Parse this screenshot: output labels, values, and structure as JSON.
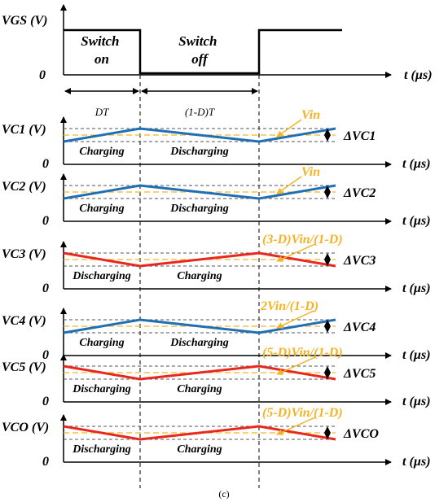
{
  "vgs": {
    "axis_label": "VGS (V)",
    "zero": "0",
    "t_label": "t (µs)",
    "switch_on": "Switch on",
    "switch_off": "Switch off"
  },
  "intervals": {
    "dt": "DT",
    "one_minus_d_t": "(1-D)T"
  },
  "panels": [
    {
      "id": "c1",
      "axis_label": "VC1 (V)",
      "zero": "0",
      "t_label": "t (µs)",
      "phase1": "Charging",
      "phase2": "Discharging",
      "direction": "up",
      "line_color": "#1f6fb5",
      "avg_label": "Vin",
      "delta_label": "ΔVC1"
    },
    {
      "id": "c2",
      "axis_label": "VC2 (V)",
      "zero": "0",
      "t_label": "t (µs)",
      "phase1": "Charging",
      "phase2": "Discharging",
      "direction": "up",
      "line_color": "#1f6fb5",
      "avg_label": "Vin",
      "delta_label": "ΔVC2"
    },
    {
      "id": "c3",
      "axis_label": "VC3 (V)",
      "zero": "0",
      "t_label": "t (µs)",
      "phase1": "Discharging",
      "phase2": "Charging",
      "direction": "down",
      "line_color": "#e8281e",
      "avg_label": "(3-D)Vin/(1-D)",
      "delta_label": "ΔVC3"
    },
    {
      "id": "c4",
      "axis_label": "VC4 (V)",
      "zero": "0",
      "t_label": "t (µs)",
      "phase1": "Charging",
      "phase2": "Discharging",
      "direction": "up",
      "line_color": "#1f6fb5",
      "avg_label": "2Vin/(1-D)",
      "delta_label": "ΔVC4"
    },
    {
      "id": "c5",
      "axis_label": "VC5 (V)",
      "zero": "0",
      "t_label": "t (µs)",
      "phase1": "Discharging",
      "phase2": "Charging",
      "direction": "down",
      "line_color": "#e8281e",
      "avg_label": "(5-D)Vin/(1-D)",
      "delta_label": "ΔVC5"
    },
    {
      "id": "co",
      "axis_label": "VCO (V)",
      "zero": "0",
      "t_label": "t (µs)",
      "phase1": "Discharging",
      "phase2": "Charging",
      "direction": "down",
      "line_color": "#e8281e",
      "avg_label": "(5-D)Vin/(1-D)",
      "delta_label": "ΔVCO"
    }
  ],
  "caption": "(c)",
  "colors": {
    "avg_line": "#f5b324",
    "avg_text": "#f5b324",
    "ripple_bound": "#555555"
  }
}
